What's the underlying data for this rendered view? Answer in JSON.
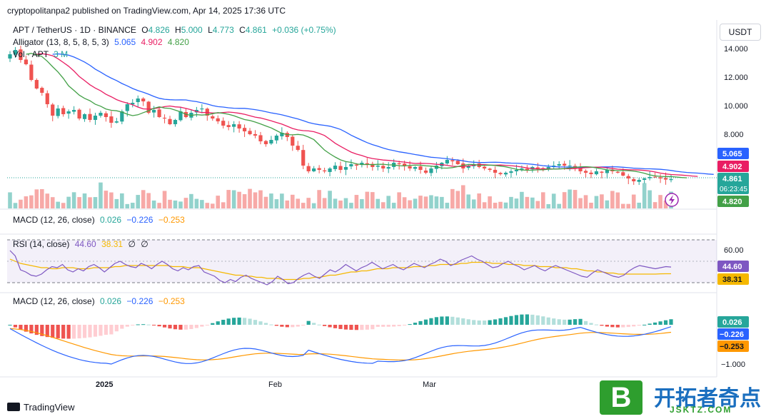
{
  "header": {
    "published": "cryptopolitanpa2 published on TradingView.com, Apr 14, 2025 17:36 UTC"
  },
  "footer": {
    "brand": "TradingView"
  },
  "watermark": {
    "cn": "开拓者奇点",
    "url": "JSKTZ.COM",
    "letter": "B"
  },
  "currency_button": "USDT",
  "legend": {
    "symbol": "APT / TetherUS · 1D · BINANCE",
    "o_label": "O",
    "o": "4.826",
    "h_label": "H",
    "h": "5.000",
    "l_label": "L",
    "l": "4.773",
    "c_label": "C",
    "c": "4.861",
    "change": "+0.036 (+0.75%)",
    "alligator_label": "Alligator (13, 8, 5, 8, 5, 3)",
    "alligator_jaw": "5.065",
    "alligator_teeth": "4.902",
    "alligator_lips": "4.820",
    "vol_label": "Vol · APT",
    "vol_value": "3 M",
    "macd1_label": "MACD (12, 26, close)",
    "macd1_v1": "0.026",
    "macd1_v2": "−0.226",
    "macd1_v3": "−0.253",
    "rsi_label": "RSI (14, close)",
    "rsi_v1": "44.60",
    "rsi_v2": "38.31",
    "rsi_v3": "∅",
    "rsi_v4": "∅",
    "macd2_label": "MACD (12, 26, close)",
    "macd2_v1": "0.026",
    "macd2_v2": "−0.226",
    "macd2_v3": "−0.253"
  },
  "axis_labels": {
    "price": [
      "14.000",
      "12.000",
      "10.000",
      "8.000"
    ],
    "rsi": [
      "60.00"
    ],
    "macd": [
      "−1.000"
    ],
    "time": [
      "2025",
      "Feb",
      "Mar"
    ]
  },
  "price_tags": {
    "jaw": "5.065",
    "teeth": "4.902",
    "last": "4.861",
    "countdown": "06:23:45",
    "lips": "4.820",
    "rsi": "44.60",
    "rsi_ma": "38.31",
    "macd_hist": "0.026",
    "macd_line": "−0.226",
    "macd_signal": "−0.253"
  },
  "colors": {
    "up": "#26a69a",
    "down": "#ef5350",
    "jaw": "#2962ff",
    "teeth": "#e91e63",
    "lips": "#43a047",
    "rsi": "#7e57c2",
    "rsi_ma": "#f5b800",
    "macd": "#2962ff",
    "signal": "#ff9800"
  },
  "chart_data": [
    {
      "type": "candlestick",
      "title": "APT / TetherUS · 1D · BINANCE",
      "x_labels": [
        "2025",
        "Feb",
        "Mar"
      ],
      "ylim": [
        4.5,
        14.8
      ],
      "y_ticks": [
        14,
        12,
        10,
        8
      ],
      "close": [
        13.6,
        13.9,
        13.2,
        12.9,
        11.8,
        11.2,
        10.9,
        10.1,
        9.3,
        9.8,
        9.4,
        9.6,
        9.7,
        9.1,
        9.4,
        9.0,
        9.3,
        9.5,
        9.2,
        8.8,
        8.9,
        9.6,
        10.1,
        10.2,
        10.5,
        10.3,
        9.5,
        9.7,
        9.2,
        9.1,
        8.7,
        9.0,
        9.6,
        9.2,
        9.5,
        9.7,
        9.8,
        9.3,
        9.1,
        8.9,
        8.6,
        8.5,
        8.7,
        8.4,
        8.2,
        8.0,
        7.9,
        7.5,
        7.3,
        7.6,
        7.9,
        8.1,
        7.8,
        7.2,
        6.9,
        5.8,
        5.4,
        5.6,
        5.5,
        5.4,
        5.6,
        5.8,
        5.5,
        5.7,
        5.9,
        5.8,
        6.0,
        5.9,
        5.7,
        5.8,
        5.6,
        5.7,
        6.0,
        5.9,
        5.8,
        5.6,
        5.7,
        5.5,
        5.3,
        5.6,
        5.8,
        6.0,
        6.2,
        6.1,
        5.9,
        5.6,
        5.8,
        5.9,
        5.7,
        5.6,
        5.5,
        5.3,
        5.2,
        5.3,
        5.4,
        5.5,
        5.6,
        5.5,
        5.7,
        5.6,
        5.6,
        5.7,
        5.8,
        5.9,
        5.8,
        5.8,
        5.6,
        5.4,
        5.3,
        5.2,
        5.4,
        5.3,
        5.5,
        5.4,
        5.3,
        5.1,
        4.9,
        4.7,
        4.8,
        4.9,
        5.0,
        5.0,
        4.9,
        4.82,
        4.86
      ],
      "series": [
        {
          "name": "Alligator Jaw",
          "last": 5.065
        },
        {
          "name": "Alligator Teeth",
          "last": 4.902
        },
        {
          "name": "Alligator Lips",
          "last": 4.82
        }
      ]
    },
    {
      "type": "line",
      "title": "RSI (14, close)",
      "y_ticks": [
        60
      ],
      "ylim": [
        20,
        70
      ],
      "series": [
        {
          "name": "RSI",
          "values": [
            60,
            55,
            42,
            40,
            37,
            36,
            38,
            42,
            45,
            44,
            47,
            42,
            40,
            43,
            41,
            45,
            47,
            44,
            40,
            44,
            48,
            50,
            47,
            45,
            44,
            48,
            46,
            43,
            47,
            50,
            47,
            43,
            41,
            44,
            42,
            45,
            46,
            40,
            38,
            36,
            32,
            30,
            33,
            31,
            35,
            37,
            34,
            32,
            30,
            28,
            31,
            36,
            33,
            29,
            30,
            34,
            37,
            39,
            36,
            34,
            38,
            42,
            40,
            43,
            47,
            44,
            41,
            44,
            46,
            49,
            46,
            43,
            45,
            47,
            44,
            42,
            45,
            48,
            46,
            44,
            47,
            49,
            52,
            50,
            46,
            48,
            51,
            53,
            55,
            52,
            50,
            47,
            44,
            45,
            48,
            50,
            47,
            45,
            42,
            44,
            46,
            43,
            41,
            44,
            46,
            44,
            42,
            40,
            38,
            36,
            35,
            39,
            42,
            40,
            38,
            36,
            35,
            37,
            41,
            44,
            46,
            45,
            44,
            43,
            44,
            45,
            44.6
          ]
        },
        {
          "name": "RSI MA",
          "values": [
            52,
            50,
            48,
            47,
            46,
            45,
            44,
            44,
            43,
            43,
            44,
            44,
            44,
            43,
            43,
            43,
            44,
            44,
            44,
            44,
            45,
            45,
            46,
            46,
            46,
            46,
            46,
            46,
            46,
            46,
            46,
            45,
            45,
            45,
            44,
            44,
            44,
            43,
            42,
            41,
            40,
            39,
            38,
            37,
            37,
            36,
            36,
            35,
            35,
            34,
            34,
            34,
            33,
            33,
            33,
            33,
            34,
            34,
            35,
            35,
            36,
            37,
            37,
            38,
            39,
            40,
            40,
            41,
            41,
            42,
            43,
            43,
            43,
            44,
            44,
            44,
            44,
            45,
            45,
            45,
            46,
            46,
            47,
            47,
            47,
            47,
            48,
            48,
            49,
            49,
            49,
            49,
            48,
            48,
            48,
            47,
            47,
            47,
            46,
            46,
            46,
            45,
            45,
            45,
            44,
            44,
            44,
            43,
            43,
            42,
            41,
            41,
            40,
            40,
            39,
            39,
            38,
            38,
            38,
            38,
            38,
            38,
            38,
            38,
            38.3,
            38.31,
            38.31
          ]
        }
      ]
    },
    {
      "type": "bar+line",
      "title": "MACD (12, 26, close)",
      "y_ticks": [
        -1.0
      ],
      "series": [
        {
          "name": "MACD",
          "last": -0.226
        },
        {
          "name": "Signal",
          "last": -0.253
        },
        {
          "name": "Histogram",
          "last": 0.026
        }
      ]
    }
  ]
}
